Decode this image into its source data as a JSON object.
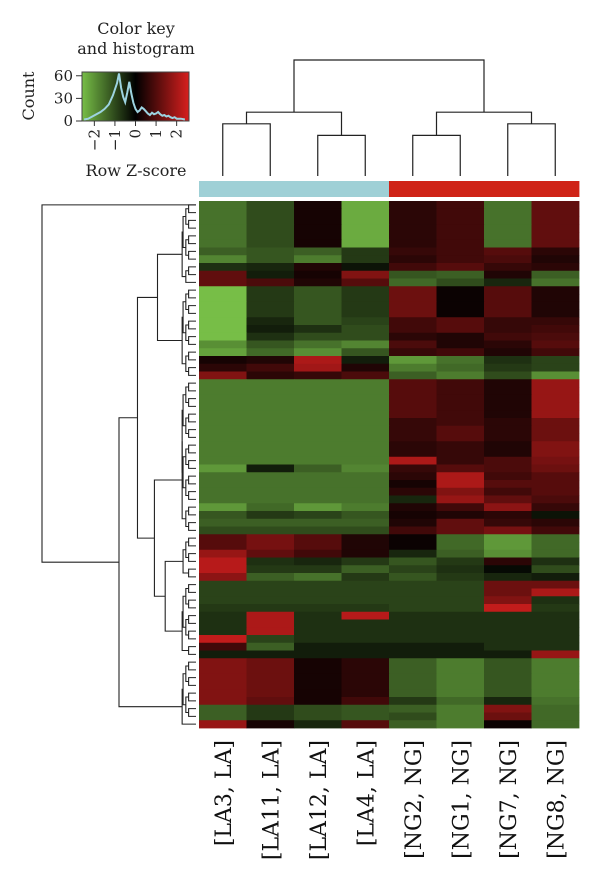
{
  "chart_data": {
    "type": "heatmap",
    "color_key": {
      "title_line1": "Color key",
      "title_line2": "and histogram",
      "ylabel": "Count",
      "xlabel": "Row Z-score",
      "y_ticks": [
        "60",
        "30",
        "0"
      ],
      "x_ticks": [
        "−2",
        "−1",
        "0",
        "1",
        "2"
      ],
      "x_range": [
        -2.6,
        2.6
      ],
      "y_range": [
        0,
        65
      ],
      "colors": {
        "low": "#77be47",
        "mid": "#000000",
        "high": "#d71f1e"
      },
      "histogram_color": "#9dd3e0",
      "histogram_points": [
        [
          -2.5,
          2
        ],
        [
          -2.3,
          3
        ],
        [
          -2.1,
          6
        ],
        [
          -1.9,
          9
        ],
        [
          -1.7,
          12
        ],
        [
          -1.5,
          16
        ],
        [
          -1.3,
          22
        ],
        [
          -1.1,
          34
        ],
        [
          -0.9,
          50
        ],
        [
          -0.8,
          63
        ],
        [
          -0.7,
          44
        ],
        [
          -0.6,
          32
        ],
        [
          -0.5,
          25
        ],
        [
          -0.4,
          38
        ],
        [
          -0.3,
          52
        ],
        [
          -0.2,
          36
        ],
        [
          -0.1,
          24
        ],
        [
          0.0,
          16
        ],
        [
          0.1,
          12
        ],
        [
          0.2,
          14
        ],
        [
          0.3,
          18
        ],
        [
          0.4,
          16
        ],
        [
          0.5,
          13
        ],
        [
          0.6,
          10
        ],
        [
          0.7,
          8
        ],
        [
          0.8,
          11
        ],
        [
          0.9,
          9
        ],
        [
          1.0,
          10
        ],
        [
          1.1,
          12
        ],
        [
          1.2,
          9
        ],
        [
          1.3,
          7
        ],
        [
          1.4,
          8
        ],
        [
          1.5,
          6
        ],
        [
          1.6,
          7
        ],
        [
          1.7,
          5
        ],
        [
          1.8,
          4
        ],
        [
          1.9,
          5
        ],
        [
          2.0,
          3
        ],
        [
          2.2,
          3
        ],
        [
          2.4,
          2
        ]
      ]
    },
    "columns": [
      "[LA3, LA]",
      "[LA11, LA]",
      "[LA12, LA]",
      "[LA4, LA]",
      "[NG2, NG]",
      "[NG1, NG]",
      "[NG7, NG]",
      "[NG8, NG]"
    ],
    "column_groups": [
      "LA",
      "LA",
      "LA",
      "LA",
      "NG",
      "NG",
      "NG",
      "NG"
    ],
    "group_colors": {
      "LA": "#9fd0d6",
      "NG": "#cf2317"
    },
    "column_dendrogram": [
      [
        0,
        1,
        0.45
      ],
      [
        2,
        3,
        0.35
      ],
      [
        4,
        5,
        0.35
      ],
      [
        6,
        7,
        0.45
      ],
      [
        8,
        9,
        0.55
      ],
      [
        10,
        11,
        0.55
      ],
      [
        12,
        13,
        1.0
      ]
    ],
    "row_groups": [
      {
        "rows": 11,
        "values": [
          [
            -1.2,
            -0.8,
            0.2,
            -1.8,
            0.4,
            0.6,
            -1.2,
            0.9
          ],
          [
            -1.2,
            -0.8,
            0.2,
            -1.8,
            0.4,
            0.6,
            -1.2,
            0.9
          ],
          [
            -1.2,
            -0.8,
            0.2,
            -1.8,
            0.4,
            0.6,
            -1.2,
            0.9
          ],
          [
            -1.2,
            -0.8,
            0.2,
            -1.8,
            0.4,
            0.6,
            -1.2,
            0.9
          ],
          [
            -1.2,
            -0.8,
            0.2,
            -1.8,
            0.4,
            0.6,
            -1.2,
            0.9
          ],
          [
            -1.2,
            -0.8,
            0.2,
            -1.8,
            0.4,
            0.6,
            -1.2,
            0.9
          ],
          [
            -1.0,
            -0.9,
            -1.0,
            -0.6,
            0.5,
            0.6,
            0.8,
            0.4
          ],
          [
            -1.4,
            -0.9,
            -1.3,
            -0.6,
            0.4,
            0.6,
            0.7,
            0.3
          ],
          [
            -0.5,
            -0.4,
            0.3,
            -0.2,
            0.6,
            0.8,
            0.5,
            0.4
          ],
          [
            0.9,
            -0.3,
            0.2,
            1.2,
            -0.9,
            -1.0,
            0.3,
            -1.0
          ],
          [
            0.9,
            0.7,
            0.3,
            0.8,
            -1.1,
            -0.8,
            -0.4,
            -1.2
          ]
        ]
      },
      {
        "rows": 12,
        "values": [
          [
            -2.0,
            -0.6,
            -0.9,
            -0.6,
            1.0,
            0.1,
            0.8,
            0.3
          ],
          [
            -2.0,
            -0.6,
            -0.9,
            -0.6,
            1.0,
            0.1,
            0.8,
            0.3
          ],
          [
            -2.0,
            -0.6,
            -0.9,
            -0.6,
            1.0,
            0.1,
            0.8,
            0.3
          ],
          [
            -2.0,
            -0.6,
            -0.9,
            -0.6,
            1.0,
            0.1,
            0.8,
            0.3
          ],
          [
            -2.0,
            -0.4,
            -0.9,
            -0.7,
            0.6,
            0.8,
            0.5,
            0.5
          ],
          [
            -2.0,
            -0.3,
            -0.5,
            -0.8,
            0.6,
            0.8,
            0.5,
            0.6
          ],
          [
            -2.0,
            -0.5,
            -0.8,
            -0.8,
            0.4,
            0.3,
            0.6,
            0.7
          ],
          [
            -1.5,
            -0.9,
            -1.2,
            -1.4,
            0.7,
            0.3,
            0.4,
            0.8
          ],
          [
            -1.7,
            -1.1,
            -1.5,
            -0.9,
            0.5,
            0.6,
            0.3,
            0.6
          ],
          [
            0.2,
            0.3,
            1.6,
            -0.3,
            -1.6,
            -1.2,
            -0.5,
            -0.7
          ],
          [
            0.4,
            0.6,
            1.5,
            0.3,
            -1.3,
            -1.1,
            -0.6,
            -0.7
          ],
          [
            1.2,
            0.4,
            0.5,
            0.7,
            -1.0,
            -1.3,
            -0.8,
            -1.5
          ]
        ]
      },
      {
        "rows": 20,
        "values": [
          [
            -1.3,
            -1.3,
            -1.3,
            -1.3,
            0.8,
            0.6,
            0.3,
            1.4
          ],
          [
            -1.3,
            -1.3,
            -1.3,
            -1.3,
            0.8,
            0.6,
            0.3,
            1.4
          ],
          [
            -1.3,
            -1.3,
            -1.3,
            -1.3,
            0.8,
            0.6,
            0.3,
            1.4
          ],
          [
            -1.3,
            -1.3,
            -1.3,
            -1.3,
            0.8,
            0.6,
            0.3,
            1.4
          ],
          [
            -1.3,
            -1.3,
            -1.3,
            -1.3,
            0.8,
            0.6,
            0.3,
            1.4
          ],
          [
            -1.3,
            -1.3,
            -1.3,
            -1.3,
            0.5,
            0.6,
            0.4,
            1.0
          ],
          [
            -1.3,
            -1.3,
            -1.3,
            -1.3,
            0.5,
            0.8,
            0.4,
            1.0
          ],
          [
            -1.3,
            -1.3,
            -1.3,
            -1.3,
            0.5,
            0.8,
            0.4,
            1.0
          ],
          [
            -1.3,
            -1.3,
            -1.3,
            -1.3,
            0.4,
            0.5,
            0.3,
            1.2
          ],
          [
            -1.3,
            -1.3,
            -1.3,
            -1.3,
            0.4,
            0.5,
            0.3,
            1.2
          ],
          [
            -1.3,
            -1.3,
            -1.3,
            -1.3,
            1.6,
            0.5,
            0.7,
            1.1
          ],
          [
            -1.6,
            -0.3,
            -1.0,
            -1.4,
            0.5,
            0.8,
            0.7,
            1.0
          ],
          [
            -1.2,
            -1.2,
            -1.2,
            -1.2,
            0.4,
            1.6,
            0.6,
            0.8
          ],
          [
            -1.2,
            -1.2,
            -1.2,
            -1.2,
            0.2,
            1.6,
            0.8,
            0.8
          ],
          [
            -1.2,
            -1.2,
            -1.2,
            -1.2,
            0.4,
            1.2,
            0.6,
            0.8
          ],
          [
            -1.2,
            -1.2,
            -1.2,
            -1.2,
            -0.4,
            1.4,
            0.9,
            0.7
          ],
          [
            -1.6,
            -1.1,
            -1.6,
            -1.3,
            0.3,
            0.6,
            1.3,
            0.5
          ],
          [
            -0.9,
            -0.6,
            -0.7,
            -0.9,
            0.2,
            0.3,
            0.4,
            -0.2
          ],
          [
            -1.0,
            -1.0,
            -1.0,
            -1.0,
            0.3,
            0.9,
            0.5,
            0.4
          ],
          [
            -0.8,
            -0.8,
            -0.8,
            -0.8,
            0.6,
            0.9,
            1.1,
            0.6
          ]
        ]
      },
      {
        "rows": 6,
        "values": [
          [
            0.8,
            1.1,
            0.8,
            0.3,
            0.1,
            -1.1,
            -1.6,
            -1.1
          ],
          [
            0.8,
            1.1,
            0.8,
            0.3,
            0.1,
            -1.1,
            -1.6,
            -1.1
          ],
          [
            1.4,
            0.9,
            0.6,
            0.3,
            -0.4,
            -1.0,
            -1.5,
            -1.1
          ],
          [
            1.7,
            -0.5,
            -0.4,
            -0.6,
            -0.9,
            -0.6,
            0.4,
            -0.5
          ],
          [
            1.7,
            -0.6,
            -0.6,
            -1.0,
            -0.7,
            -0.5,
            -0.1,
            -0.8
          ],
          [
            1.3,
            -1.0,
            -1.2,
            -0.6,
            -0.9,
            -0.6,
            -0.4,
            -0.3
          ]
        ]
      },
      {
        "rows": 10,
        "values": [
          [
            -0.7,
            -0.7,
            -0.7,
            -0.7,
            -0.7,
            -0.7,
            1.0,
            1.0
          ],
          [
            -0.7,
            -0.7,
            -0.7,
            -0.7,
            -0.7,
            -0.7,
            1.0,
            1.6
          ],
          [
            -0.7,
            -0.7,
            -0.7,
            -0.7,
            -0.7,
            -0.7,
            1.2,
            -0.5
          ],
          [
            -0.6,
            -0.6,
            -0.6,
            -0.6,
            -0.7,
            -0.7,
            1.8,
            -0.6
          ],
          [
            -0.5,
            1.6,
            -0.5,
            1.7,
            -0.5,
            -0.5,
            -0.5,
            -0.5
          ],
          [
            -0.5,
            1.6,
            -0.5,
            -0.5,
            -0.5,
            -0.5,
            -0.5,
            -0.5
          ],
          [
            -0.5,
            1.6,
            -0.5,
            -0.5,
            -0.5,
            -0.5,
            -0.5,
            -0.5
          ],
          [
            1.8,
            -0.7,
            -0.5,
            -0.5,
            -0.5,
            -0.5,
            -0.5,
            -0.5
          ],
          [
            0.6,
            -1.0,
            -0.3,
            -0.3,
            -0.3,
            -0.3,
            -0.5,
            -0.5
          ],
          [
            -0.3,
            -0.3,
            -0.3,
            -0.3,
            -0.3,
            -0.3,
            -0.3,
            1.4
          ]
        ]
      },
      {
        "rows": 9,
        "values": [
          [
            1.2,
            1.0,
            0.2,
            0.4,
            -1.0,
            -1.3,
            -0.9,
            -1.3
          ],
          [
            1.2,
            1.0,
            0.2,
            0.4,
            -1.0,
            -1.3,
            -0.9,
            -1.3
          ],
          [
            1.2,
            1.0,
            0.2,
            0.4,
            -1.0,
            -1.3,
            -0.9,
            -1.3
          ],
          [
            1.2,
            1.0,
            0.2,
            0.4,
            -1.0,
            -1.3,
            -0.9,
            -1.3
          ],
          [
            1.2,
            1.0,
            0.2,
            0.4,
            -1.0,
            -1.3,
            -0.9,
            -1.3
          ],
          [
            1.2,
            0.9,
            0.2,
            0.6,
            -0.6,
            -1.1,
            -0.4,
            -1.2
          ],
          [
            -1.0,
            -0.6,
            -0.8,
            -0.9,
            -1.0,
            -1.3,
            1.2,
            -1.1
          ],
          [
            -1.0,
            -0.6,
            -0.8,
            -0.9,
            -0.8,
            -1.3,
            1.0,
            -1.1
          ],
          [
            1.4,
            0.2,
            -0.4,
            0.8,
            -1.0,
            -1.3,
            0.1,
            -1.1
          ]
        ]
      }
    ]
  }
}
